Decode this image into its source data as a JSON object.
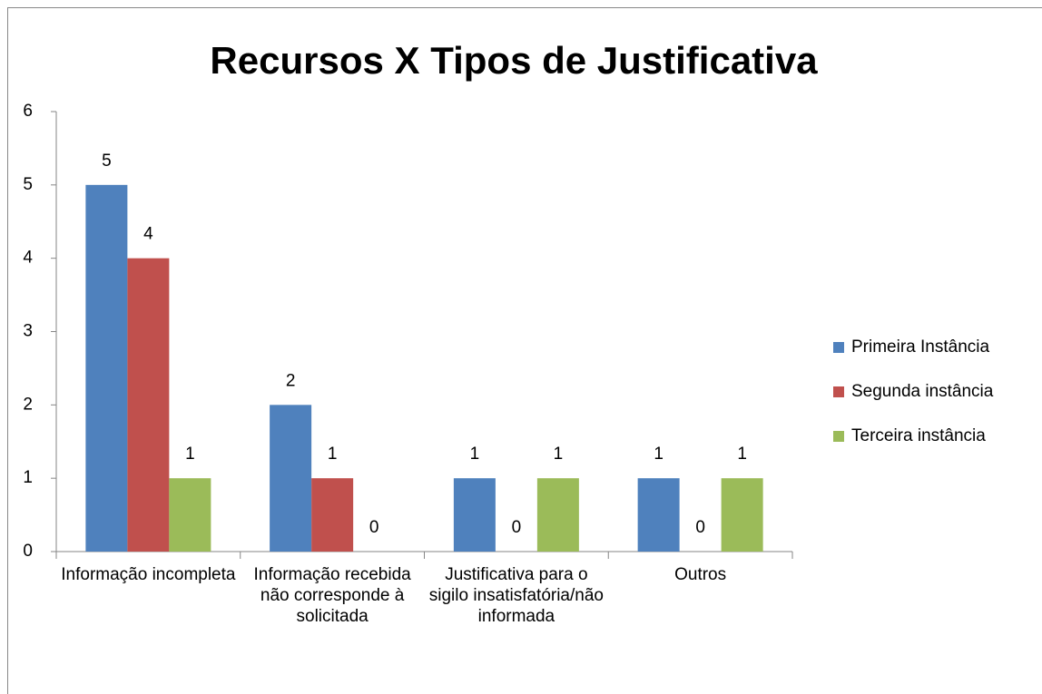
{
  "chart_data": {
    "type": "bar",
    "title": "Recursos X Tipos de Justificativa",
    "categories": [
      "Informação incompleta",
      "Informação recebida não corresponde à solicitada",
      "Justificativa para o sigilo insatisfatória/não informada",
      "Outros"
    ],
    "series": [
      {
        "name": "Primeira Instância",
        "color": "#4f81bd",
        "values": [
          5,
          2,
          1,
          1
        ]
      },
      {
        "name": "Segunda instância",
        "color": "#c0504d",
        "values": [
          4,
          1,
          0,
          0
        ]
      },
      {
        "name": "Terceira instância",
        "color": "#9bbb59",
        "values": [
          1,
          0,
          1,
          1
        ]
      }
    ],
    "ylim": [
      0,
      6
    ],
    "yticks": [
      0,
      1,
      2,
      3,
      4,
      5,
      6
    ],
    "legend": "right"
  }
}
